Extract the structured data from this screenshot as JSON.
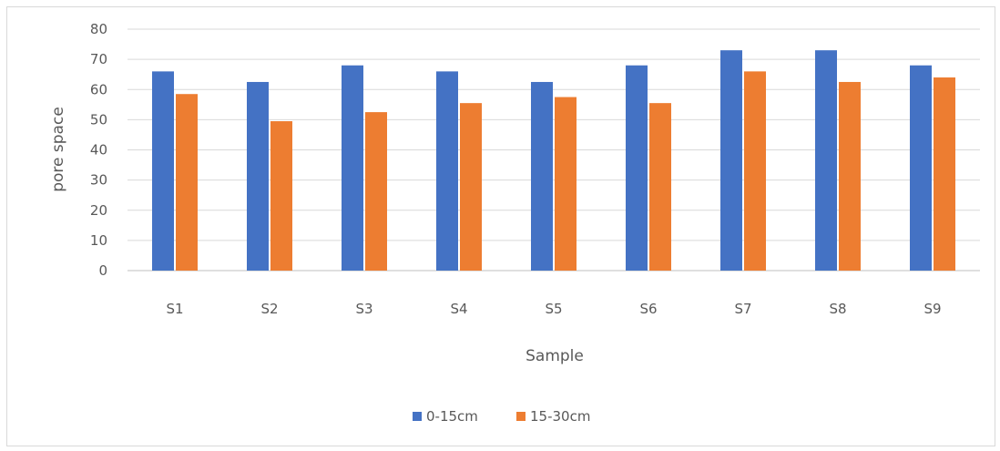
{
  "chart_data": {
    "type": "bar",
    "title": "",
    "xlabel": "Sample",
    "ylabel": "pore space",
    "categories": [
      "S1",
      "S2",
      "S3",
      "S4",
      "S5",
      "S6",
      "S7",
      "S8",
      "S9"
    ],
    "series": [
      {
        "name": "0-15cm",
        "color": "#4472C4",
        "values": [
          66,
          62.5,
          68,
          66,
          62.5,
          68,
          73,
          73,
          68
        ]
      },
      {
        "name": "15-30cm",
        "color": "#ED7D31",
        "values": [
          58.5,
          49.5,
          52.5,
          55.5,
          57.5,
          55.5,
          66,
          62.5,
          64
        ]
      }
    ],
    "ylim": [
      0,
      80
    ],
    "yticks": [
      0,
      10,
      20,
      30,
      40,
      50,
      60,
      70,
      80
    ],
    "grid": true,
    "legend_position": "bottom"
  }
}
